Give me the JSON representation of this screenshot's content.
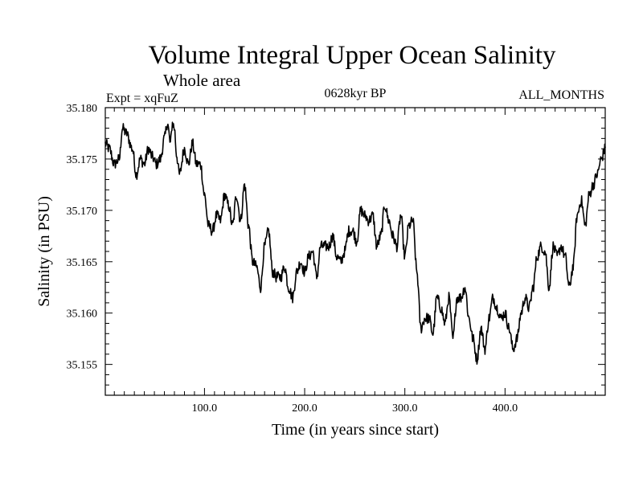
{
  "header": {
    "title": "Volume Integral Upper Ocean Salinity",
    "subtitle": "Whole area",
    "expt": "Expt = xqFuZ",
    "period": "0628kyr BP",
    "months": "ALL_MONTHS"
  },
  "chart_data": {
    "type": "line",
    "title": "Volume Integral Upper Ocean Salinity",
    "xlabel": "Time (in years since start)",
    "ylabel": "Salinity (in PSU)",
    "xlim": [
      1,
      500
    ],
    "ylim": [
      35.152,
      35.18
    ],
    "x_ticks": [
      100,
      200,
      300,
      400
    ],
    "x_tick_labels": [
      "100.0",
      "200.0",
      "300.0",
      "400.0"
    ],
    "y_ticks": [
      35.155,
      35.16,
      35.165,
      35.17,
      35.175,
      35.18
    ],
    "y_tick_labels": [
      "35.155",
      "35.160",
      "35.165",
      "35.170",
      "35.175",
      "35.180"
    ],
    "grid": false,
    "series": [
      {
        "name": "Salinity",
        "color": "#000000",
        "anchors_x": [
          1,
          5,
          10,
          15,
          18,
          22,
          28,
          32,
          36,
          40,
          44,
          48,
          52,
          56,
          60,
          63,
          66,
          68,
          70,
          72,
          75,
          80,
          84,
          88,
          92,
          96,
          100,
          104,
          108,
          112,
          116,
          120,
          124,
          128,
          132,
          136,
          140,
          144,
          148,
          152,
          156,
          160,
          164,
          168,
          172,
          176,
          180,
          184,
          188,
          192,
          196,
          200,
          204,
          208,
          212,
          216,
          220,
          224,
          228,
          232,
          236,
          240,
          244,
          248,
          252,
          256,
          260,
          264,
          268,
          272,
          276,
          280,
          284,
          288,
          292,
          296,
          300,
          304,
          308,
          312,
          316,
          320,
          324,
          328,
          332,
          336,
          340,
          344,
          348,
          352,
          356,
          360,
          364,
          368,
          372,
          376,
          380,
          384,
          388,
          392,
          396,
          400,
          404,
          408,
          412,
          416,
          420,
          424,
          428,
          432,
          436,
          440,
          444,
          448,
          452,
          456,
          460,
          464,
          468,
          472,
          476,
          480,
          484,
          488,
          492,
          496,
          500
        ],
        "anchors_y": [
          35.1765,
          35.176,
          35.1745,
          35.175,
          35.178,
          35.1775,
          35.176,
          35.1735,
          35.175,
          35.1745,
          35.176,
          35.1752,
          35.1745,
          35.175,
          35.177,
          35.1785,
          35.1765,
          35.1785,
          35.178,
          35.1755,
          35.1735,
          35.176,
          35.1745,
          35.1765,
          35.1745,
          35.1745,
          35.1715,
          35.1685,
          35.168,
          35.1695,
          35.169,
          35.1715,
          35.1705,
          35.1685,
          35.1715,
          35.169,
          35.1725,
          35.1685,
          35.165,
          35.1645,
          35.1625,
          35.1665,
          35.168,
          35.164,
          35.1635,
          35.1635,
          35.1645,
          35.1625,
          35.1615,
          35.164,
          35.165,
          35.164,
          35.1655,
          35.166,
          35.1635,
          35.1665,
          35.1665,
          35.1665,
          35.1675,
          35.1655,
          35.165,
          35.166,
          35.168,
          35.168,
          35.167,
          35.17,
          35.1695,
          35.169,
          35.1695,
          35.1665,
          35.1675,
          35.1705,
          35.169,
          35.1675,
          35.1665,
          35.1695,
          35.1655,
          35.1685,
          35.169,
          35.164,
          35.1585,
          35.1595,
          35.1595,
          35.158,
          35.1615,
          35.1605,
          35.159,
          35.1615,
          35.1575,
          35.1615,
          35.1615,
          35.1625,
          35.1595,
          35.1575,
          35.1555,
          35.1585,
          35.1565,
          35.1595,
          35.1615,
          35.1605,
          35.1595,
          35.16,
          35.1585,
          35.1565,
          35.1575,
          35.16,
          35.1615,
          35.1605,
          35.1625,
          35.1655,
          35.1665,
          35.166,
          35.1625,
          35.1665,
          35.1655,
          35.1665,
          35.1655,
          35.1625,
          35.1645,
          35.1695,
          35.171,
          35.1685,
          35.1715,
          35.1725,
          35.1735,
          35.175,
          35.176
        ]
      }
    ]
  }
}
